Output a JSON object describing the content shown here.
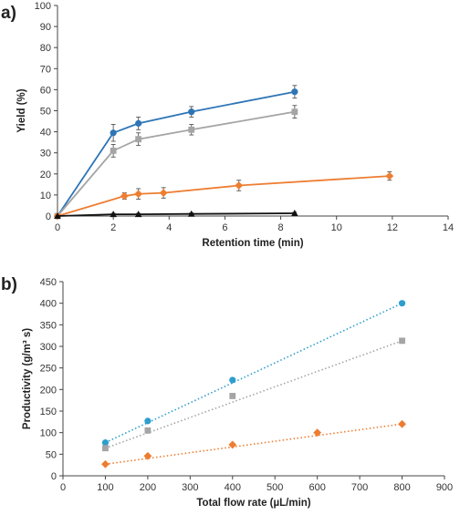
{
  "figure_labels": {
    "a": "a)",
    "b": "b)"
  },
  "chart_data": [
    {
      "type": "line",
      "panel": "a)",
      "xlabel": "Retention time (min)",
      "ylabel": "Yield (%)",
      "xlim": [
        0,
        14
      ],
      "ylim": [
        0,
        100
      ],
      "xticks": [
        0,
        2,
        4,
        6,
        8,
        10,
        12,
        14
      ],
      "yticks": [
        0,
        10,
        20,
        30,
        40,
        50,
        60,
        70,
        80,
        90,
        100
      ],
      "xtick_labels": [
        "0",
        "2",
        "4",
        "6",
        "8",
        "10",
        "12",
        "14"
      ],
      "ytick_labels": [
        "0",
        "10",
        "20",
        "30",
        "40",
        "50",
        "60",
        "70",
        "80",
        "90",
        "100"
      ],
      "grid": false,
      "series": [
        {
          "color": "#2e75b6",
          "marker": "circle",
          "x": [
            0,
            2,
            2.9,
            4.8,
            8.5
          ],
          "y": [
            0,
            39.5,
            44,
            49.5,
            59
          ],
          "err": [
            0,
            4,
            3,
            2.5,
            3
          ]
        },
        {
          "color": "#a5a5a5",
          "marker": "square",
          "x": [
            0,
            2,
            2.9,
            4.8,
            8.5
          ],
          "y": [
            0,
            31,
            36.5,
            41,
            49.5
          ],
          "err": [
            0,
            3,
            3,
            2.5,
            3
          ]
        },
        {
          "color": "#ed7d31",
          "marker": "diamond",
          "x": [
            0,
            2.4,
            2.9,
            3.8,
            6.5,
            11.9
          ],
          "y": [
            0,
            9.5,
            10.5,
            11,
            14.5,
            19
          ],
          "err": [
            0,
            1.5,
            2.5,
            2.5,
            2.5,
            2
          ]
        },
        {
          "color": "#111111",
          "marker": "triangle",
          "x": [
            0,
            2,
            2.9,
            4.8,
            8.5
          ],
          "y": [
            0,
            0.8,
            0.8,
            1,
            1.3
          ],
          "err": [
            0,
            0.5,
            0.5,
            0.5,
            0.5
          ]
        }
      ]
    },
    {
      "type": "scatter",
      "panel": "b)",
      "xlabel": "Total flow rate (µL/min)",
      "ylabel": "Productivity (g/m³ s)",
      "xlim": [
        0,
        900
      ],
      "ylim": [
        0,
        450
      ],
      "xticks": [
        0,
        100,
        200,
        300,
        400,
        500,
        600,
        700,
        800,
        900
      ],
      "yticks": [
        0,
        50,
        100,
        150,
        200,
        250,
        300,
        350,
        400,
        450
      ],
      "xtick_labels": [
        "0",
        "100",
        "200",
        "300",
        "400",
        "500",
        "600",
        "700",
        "800",
        "900"
      ],
      "ytick_labels": [
        "0",
        "50",
        "100",
        "150",
        "200",
        "250",
        "300",
        "350",
        "400",
        "450"
      ],
      "grid": false,
      "trendlines": "dotted",
      "series": [
        {
          "color": "#2e9ecd",
          "marker": "circle",
          "x": [
            100,
            200,
            400,
            800
          ],
          "y": [
            77,
            127,
            222,
            400
          ]
        },
        {
          "color": "#a5a5a5",
          "marker": "square",
          "x": [
            100,
            200,
            400,
            800
          ],
          "y": [
            64,
            105,
            185,
            313
          ]
        },
        {
          "color": "#ed7d31",
          "marker": "diamond",
          "x": [
            100,
            200,
            400,
            600,
            800
          ],
          "y": [
            27,
            46,
            72,
            100,
            120
          ]
        }
      ]
    }
  ]
}
